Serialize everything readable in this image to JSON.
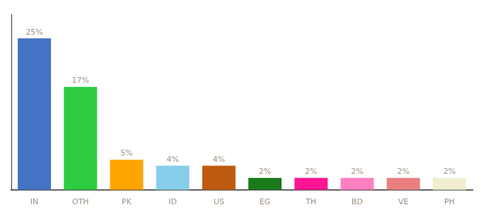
{
  "chart_data": {
    "type": "bar",
    "categories": [
      "IN",
      "OTH",
      "PK",
      "ID",
      "US",
      "EG",
      "TH",
      "BD",
      "VE",
      "PH"
    ],
    "values": [
      25,
      17,
      5,
      4,
      4,
      2,
      2,
      2,
      2,
      2
    ],
    "value_labels": [
      "25%",
      "17%",
      "5%",
      "4%",
      "4%",
      "2%",
      "2%",
      "2%",
      "2%",
      "2%"
    ],
    "colors": [
      "#4472c4",
      "#2ecc40",
      "#ffa500",
      "#87ceeb",
      "#c05a10",
      "#1a7a1a",
      "#ff1493",
      "#ff80c0",
      "#e88080",
      "#f0edd0"
    ],
    "ylim": [
      0,
      29
    ],
    "grid": false,
    "data_labels": true,
    "tick_labels": "x"
  }
}
